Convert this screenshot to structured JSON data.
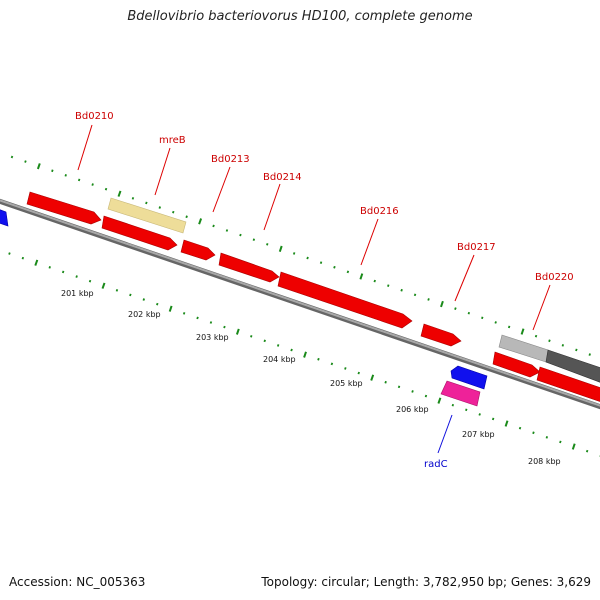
{
  "title": "Bdellovibrio bacteriovorus HD100, complete genome",
  "footer": {
    "accession": "Accession: NC_005363",
    "summary": "Topology: circular; Length: 3,782,950 bp; Genes: 3,629"
  },
  "colors": {
    "forward_gene": "#ee0000",
    "reverse_gene": "#1010ee",
    "radC": "#ee2299",
    "mreB": "#eedd99",
    "gray_gene": "#b8b8b8",
    "dark_gray_gene": "#555555",
    "forward_label": "#cc0000",
    "reverse_label": "#0000cc",
    "tick": "#1a8a1a",
    "backbone": "#888888"
  },
  "gene_labels": [
    {
      "id": "bd0210",
      "text": "Bd0210",
      "strand": "forward"
    },
    {
      "id": "mreb",
      "text": "mreB",
      "strand": "forward"
    },
    {
      "id": "bd0213",
      "text": "Bd0213",
      "strand": "forward"
    },
    {
      "id": "bd0214",
      "text": "Bd0214",
      "strand": "forward"
    },
    {
      "id": "bd0216",
      "text": "Bd0216",
      "strand": "forward"
    },
    {
      "id": "bd0217",
      "text": "Bd0217",
      "strand": "forward"
    },
    {
      "id": "bd0220",
      "text": "Bd0220",
      "strand": "forward"
    },
    {
      "id": "radc",
      "text": "radC",
      "strand": "reverse"
    }
  ],
  "kbp_labels": [
    "201 kbp",
    "202 kbp",
    "203 kbp",
    "204 kbp",
    "205 kbp",
    "206 kbp",
    "207 kbp",
    "208 kbp"
  ]
}
